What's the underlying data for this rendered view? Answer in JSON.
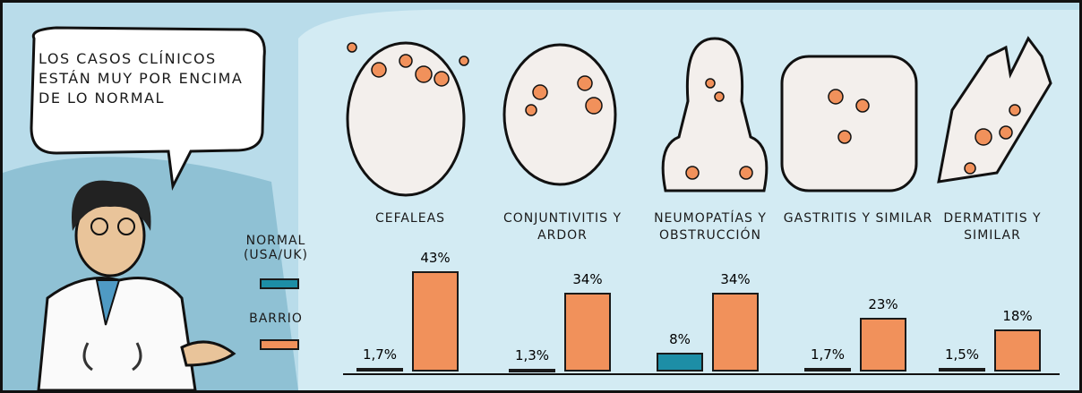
{
  "chart_data": {
    "type": "bar",
    "speech": "LOS CASOS CLÍNICOS ESTÁN MUY POR ENCIMA DE LO NORMAL",
    "categories": [
      "CEFALEAS",
      "CONJUNTIVITIS Y ARDOR",
      "NEUMOPATÍAS Y OBSTRUCCIÓN",
      "GASTRITIS Y SIMILAR",
      "DERMATITIS Y SIMILAR"
    ],
    "series": [
      {
        "name": "NORMAL (USA/UK)",
        "color": "#1d8ea6",
        "values": [
          1.7,
          1.3,
          8,
          1.7,
          1.5
        ],
        "value_labels": [
          "1,7%",
          "1,3%",
          "8%",
          "1,7%",
          "1,5%"
        ]
      },
      {
        "name": "BARRIO",
        "color": "#f1915b",
        "values": [
          43,
          34,
          34,
          23,
          18
        ],
        "value_labels": [
          "43%",
          "34%",
          "34%",
          "23%",
          "18%"
        ]
      }
    ]
  }
}
